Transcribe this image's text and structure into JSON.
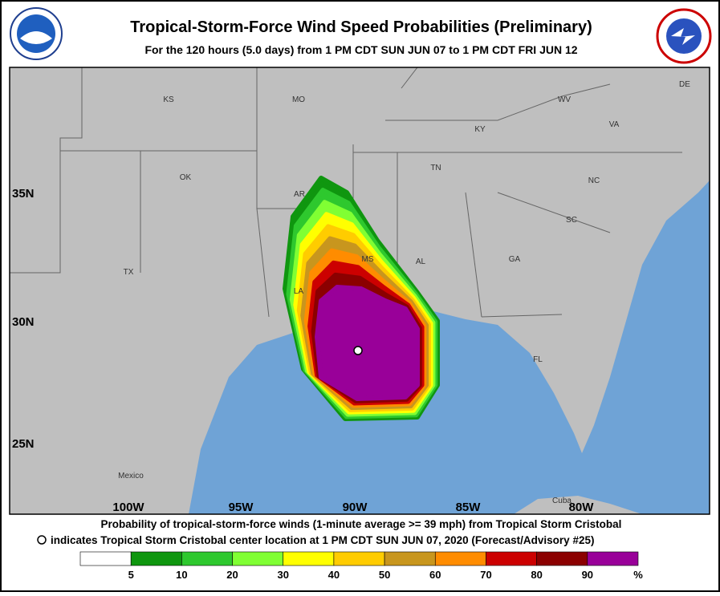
{
  "header": {
    "title": "Tropical-Storm-Force Wind Speed Probabilities (Preliminary)",
    "subtitle": "For the 120 hours (5.0 days) from 1 PM CDT SUN JUN 07 to 1 PM CDT FRI JUN 12"
  },
  "map": {
    "lat_labels": [
      "35N",
      "30N",
      "25N"
    ],
    "lon_labels": [
      "100W",
      "95W",
      "90W",
      "85W",
      "80W"
    ],
    "places": [
      "KS",
      "MO",
      "KY",
      "WV",
      "VA",
      "DE",
      "TN",
      "NC",
      "OK",
      "AR",
      "SC",
      "MS",
      "AL",
      "GA",
      "TX",
      "LA",
      "FL",
      "Mexico",
      "Cuba"
    ]
  },
  "caption": {
    "line1": "Probability of tropical-storm-force winds (1-minute average >= 39 mph) from Tropical Storm Cristobal",
    "line2": "indicates Tropical Storm Cristobal center location at 1 PM CDT SUN JUN 07, 2020 (Forecast/Advisory #25)"
  },
  "legend": {
    "colors": [
      "#ffffff",
      "#0f960f",
      "#2ec82e",
      "#80ff33",
      "#ffff00",
      "#ffcc00",
      "#c8961e",
      "#ff8c00",
      "#cc0000",
      "#8b0000",
      "#990099"
    ],
    "labels": [
      "5",
      "10",
      "20",
      "30",
      "40",
      "50",
      "60",
      "70",
      "80",
      "90",
      "%"
    ]
  }
}
